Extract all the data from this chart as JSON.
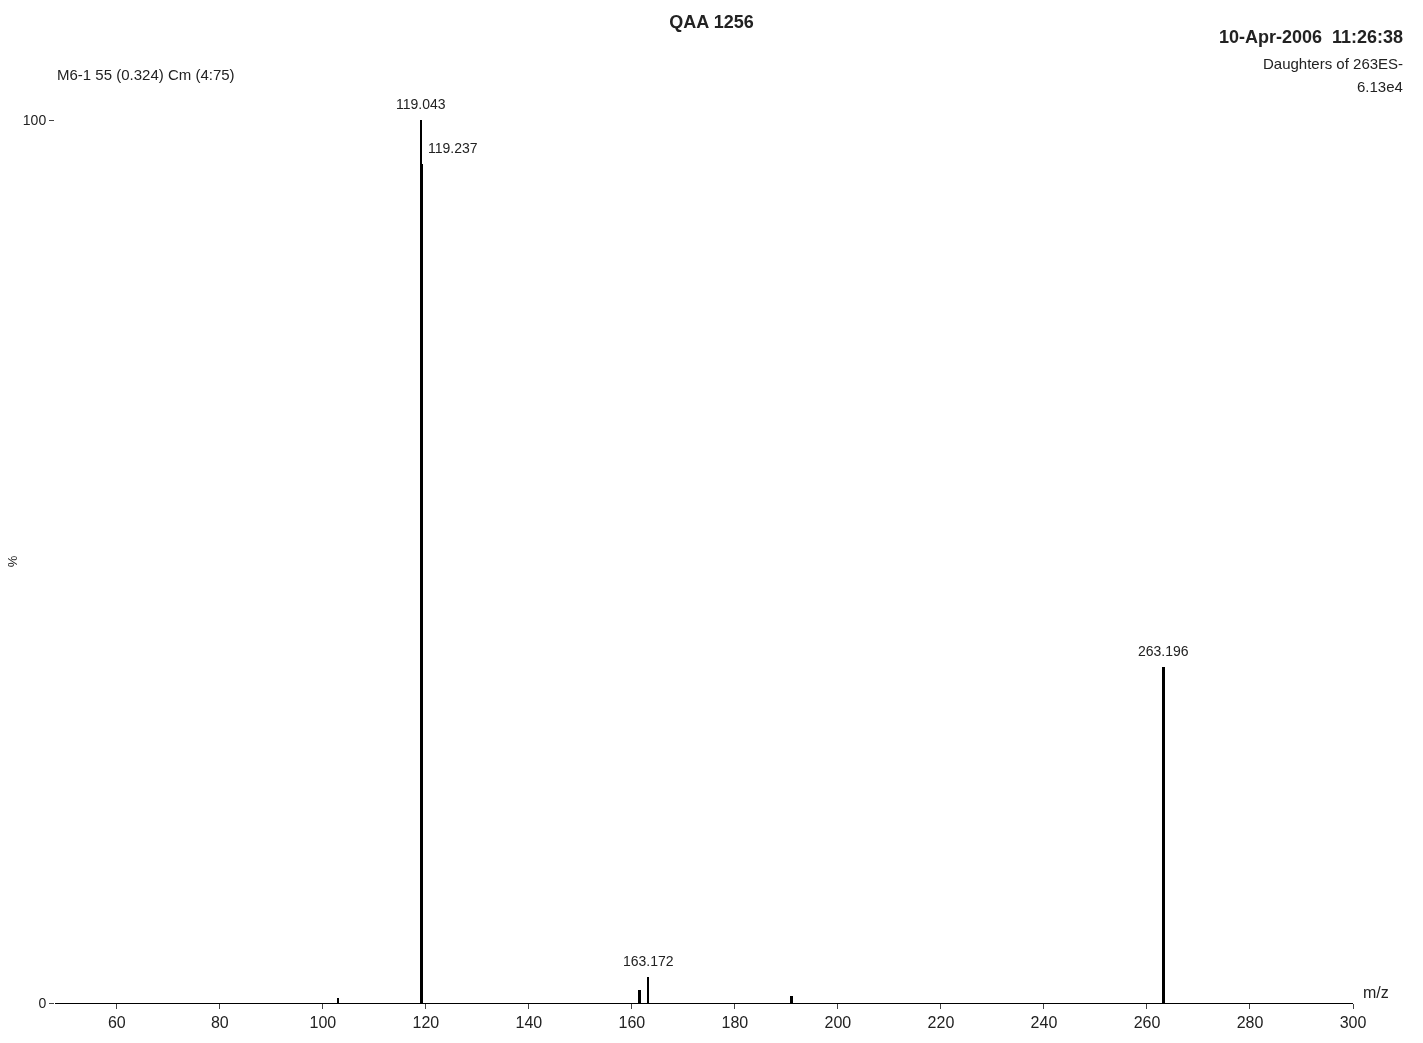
{
  "chart_data": {
    "type": "bar",
    "title": "QAA 1256",
    "xlabel": "m/z",
    "ylabel": "%",
    "x": [
      103.0,
      119.043,
      119.237,
      161.5,
      163.172,
      191.0,
      263.196
    ],
    "values": [
      0.6,
      100,
      95,
      1.5,
      3,
      0.8,
      38
    ],
    "color": "#000000",
    "xlim": [
      48,
      300
    ],
    "xticks": [
      60,
      80,
      100,
      120,
      140,
      160,
      180,
      200,
      220,
      240,
      260,
      280,
      300
    ],
    "ylim": [
      0,
      100
    ],
    "yticks": [
      0,
      100
    ],
    "annotations": [
      "M6-1 55 (0.324) Cm (4:75)",
      "10-Apr-2006  11:26:38",
      "Daughters of 263ES-",
      "6.13e4",
      {
        "text": "119.043",
        "x": 119.043,
        "y": 100
      },
      {
        "text": "119.237",
        "x": 119.237,
        "y": 95
      },
      {
        "text": "163.172",
        "x": 163.172,
        "y": 3
      },
      {
        "text": "263.196",
        "x": 263.196,
        "y": 38
      }
    ]
  }
}
